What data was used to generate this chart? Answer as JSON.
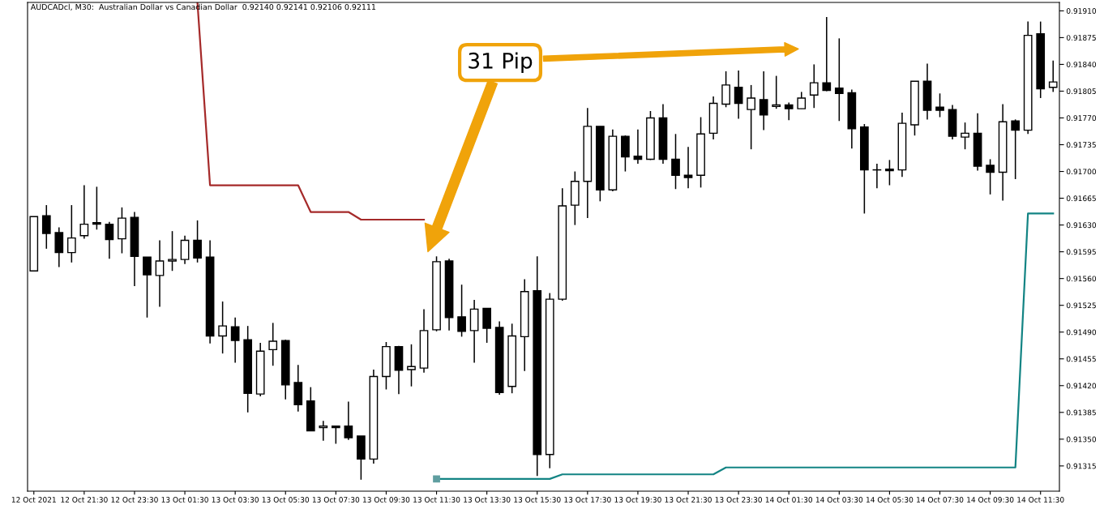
{
  "chart_data": {
    "type": "candlestick",
    "title": "AUDCADcl, M30:  Australian Dollar vs Canadian Dollar  0.92140 0.92141 0.92106 0.92111",
    "annotations": [
      "31 Pip"
    ],
    "color": "#000000",
    "categories": [
      "12 Oct 2021",
      null,
      null,
      null,
      "12 Oct 21:30",
      null,
      null,
      null,
      "12 Oct 23:30",
      null,
      null,
      null,
      "13 Oct 01:30",
      null,
      null,
      null,
      "13 Oct 03:30",
      null,
      null,
      null,
      "13 Oct 05:30",
      null,
      null,
      null,
      "13 Oct 07:30",
      null,
      null,
      null,
      "13 Oct 09:30",
      null,
      null,
      null,
      "13 Oct 11:30",
      null,
      null,
      null,
      "13 Oct 13:30",
      null,
      null,
      null,
      "13 Oct 15:30",
      null,
      null,
      null,
      "13 Oct 17:30",
      null,
      null,
      null,
      "13 Oct 19:30",
      null,
      null,
      null,
      "13 Oct 21:30",
      null,
      null,
      null,
      "13 Oct 23:30",
      null,
      null,
      null,
      "14 Oct 01:30",
      null,
      null,
      null,
      "14 Oct 03:30",
      null,
      null,
      null,
      "14 Oct 05:30",
      null,
      null,
      null,
      "14 Oct 07:30",
      null,
      null,
      null,
      "14 Oct 09:30",
      null,
      null,
      null,
      "14 Oct 11:30",
      null
    ],
    "ohlc": [
      [
        0.9157,
        0.91641,
        0.9157,
        0.91641
      ],
      [
        0.91642,
        0.91656,
        0.91599,
        0.91619
      ],
      [
        0.9162,
        0.91627,
        0.91575,
        0.91594
      ],
      [
        0.91594,
        0.91656,
        0.91581,
        0.91613
      ],
      [
        0.91616,
        0.91682,
        0.91612,
        0.91631
      ],
      [
        0.91633,
        0.9168,
        0.91624,
        0.91631
      ],
      [
        0.91631,
        0.91634,
        0.91586,
        0.91611
      ],
      [
        0.91612,
        0.91653,
        0.91593,
        0.91639
      ],
      [
        0.9164,
        0.91647,
        0.9155,
        0.91589
      ],
      [
        0.91588,
        0.91588,
        0.91509,
        0.91565
      ],
      [
        0.91564,
        0.9161,
        0.91523,
        0.91583
      ],
      [
        0.91583,
        0.91622,
        0.9157,
        0.91585
      ],
      [
        0.91585,
        0.91616,
        0.91579,
        0.9161
      ],
      [
        0.9161,
        0.91636,
        0.91581,
        0.91587
      ],
      [
        0.91588,
        0.9161,
        0.91475,
        0.91485
      ],
      [
        0.91485,
        0.9153,
        0.91462,
        0.91498
      ],
      [
        0.91497,
        0.91509,
        0.9145,
        0.91479
      ],
      [
        0.9148,
        0.91498,
        0.91385,
        0.9141
      ],
      [
        0.91409,
        0.91476,
        0.91406,
        0.91465
      ],
      [
        0.91467,
        0.91502,
        0.91446,
        0.91478
      ],
      [
        0.91479,
        0.9148,
        0.91402,
        0.91421
      ],
      [
        0.91424,
        0.91447,
        0.91386,
        0.91395
      ],
      [
        0.914,
        0.91418,
        0.91361,
        0.91361
      ],
      [
        0.91365,
        0.91374,
        0.91348,
        0.91367
      ],
      [
        0.91367,
        0.91367,
        0.91344,
        0.91365
      ],
      [
        0.91367,
        0.91399,
        0.91349,
        0.91352
      ],
      [
        0.91354,
        0.91354,
        0.91297,
        0.91324
      ],
      [
        0.91324,
        0.91441,
        0.91318,
        0.91432
      ],
      [
        0.91432,
        0.91477,
        0.91415,
        0.91471
      ],
      [
        0.91471,
        0.91472,
        0.91409,
        0.9144
      ],
      [
        0.91441,
        0.91474,
        0.91419,
        0.91445
      ],
      [
        0.91443,
        0.9152,
        0.91437,
        0.91492
      ],
      [
        0.91493,
        0.91589,
        0.91491,
        0.91582
      ],
      [
        0.91583,
        0.91586,
        0.91492,
        0.91509
      ],
      [
        0.9151,
        0.91552,
        0.91484,
        0.91491
      ],
      [
        0.91492,
        0.91532,
        0.9145,
        0.9152
      ],
      [
        0.91521,
        0.91521,
        0.91476,
        0.91495
      ],
      [
        0.91496,
        0.91504,
        0.91408,
        0.91411
      ],
      [
        0.91419,
        0.91501,
        0.9141,
        0.91485
      ],
      [
        0.91484,
        0.91559,
        0.91439,
        0.91543
      ],
      [
        0.91544,
        0.91589,
        0.91302,
        0.9133
      ],
      [
        0.9133,
        0.91541,
        0.91312,
        0.91533
      ],
      [
        0.91533,
        0.91678,
        0.91531,
        0.91655
      ],
      [
        0.91656,
        0.917,
        0.9163,
        0.91687
      ],
      [
        0.91687,
        0.91783,
        0.91639,
        0.91759
      ],
      [
        0.91759,
        0.91759,
        0.91661,
        0.91676
      ],
      [
        0.91676,
        0.91755,
        0.91674,
        0.91746
      ],
      [
        0.91746,
        0.91747,
        0.917,
        0.91719
      ],
      [
        0.9172,
        0.91755,
        0.9171,
        0.91716
      ],
      [
        0.91716,
        0.91779,
        0.91715,
        0.9177
      ],
      [
        0.9177,
        0.91788,
        0.9171,
        0.91716
      ],
      [
        0.91716,
        0.91749,
        0.91677,
        0.91695
      ],
      [
        0.91695,
        0.91732,
        0.91678,
        0.91692
      ],
      [
        0.91695,
        0.91771,
        0.91679,
        0.91749
      ],
      [
        0.9175,
        0.91798,
        0.91742,
        0.91789
      ],
      [
        0.91788,
        0.91831,
        0.91784,
        0.91813
      ],
      [
        0.9181,
        0.91832,
        0.91769,
        0.91789
      ],
      [
        0.91781,
        0.91813,
        0.91729,
        0.91796
      ],
      [
        0.91794,
        0.91831,
        0.91754,
        0.91774
      ],
      [
        0.91785,
        0.91825,
        0.91782,
        0.91787
      ],
      [
        0.91787,
        0.9179,
        0.91767,
        0.91782
      ],
      [
        0.91782,
        0.91804,
        0.91782,
        0.91796
      ],
      [
        0.918,
        0.9184,
        0.91783,
        0.91816
      ],
      [
        0.91816,
        0.91902,
        0.91805,
        0.91806
      ],
      [
        0.91809,
        0.91874,
        0.91766,
        0.91802
      ],
      [
        0.91803,
        0.91807,
        0.9173,
        0.91756
      ],
      [
        0.91758,
        0.91762,
        0.91645,
        0.91702
      ],
      [
        0.91702,
        0.9171,
        0.91678,
        0.91702
      ],
      [
        0.91703,
        0.91715,
        0.91682,
        0.91701
      ],
      [
        0.91702,
        0.91777,
        0.91693,
        0.91763
      ],
      [
        0.91761,
        0.91818,
        0.91747,
        0.91818
      ],
      [
        0.91818,
        0.91841,
        0.91768,
        0.9178
      ],
      [
        0.91784,
        0.91802,
        0.91771,
        0.9178
      ],
      [
        0.91781,
        0.91787,
        0.91742,
        0.91746
      ],
      [
        0.91745,
        0.91764,
        0.91729,
        0.9175
      ],
      [
        0.9175,
        0.91776,
        0.91701,
        0.91707
      ],
      [
        0.91708,
        0.91716,
        0.9167,
        0.91699
      ],
      [
        0.91699,
        0.91788,
        0.91662,
        0.91765
      ],
      [
        0.91766,
        0.91768,
        0.9169,
        0.91754
      ],
      [
        0.91754,
        0.91896,
        0.91749,
        0.91878
      ],
      [
        0.9188,
        0.91896,
        0.91796,
        0.91808
      ],
      [
        0.9181,
        0.91845,
        0.91804,
        0.91817
      ]
    ],
    "series": [
      {
        "type": "line",
        "color": "#a52a2a",
        "values": [
          null,
          null,
          null,
          null,
          null,
          null,
          null,
          null,
          null,
          null,
          null,
          null,
          null,
          0.91921,
          0.91682,
          0.91682,
          0.91682,
          0.91682,
          0.91682,
          0.91682,
          0.91682,
          0.91682,
          0.91647,
          0.91647,
          0.91647,
          0.91647,
          0.91637,
          0.91637,
          0.91637,
          0.91637,
          0.91637,
          0.91637,
          null,
          null,
          null,
          null,
          null,
          null,
          null,
          null,
          null,
          null,
          null,
          null,
          null,
          null,
          null,
          null,
          null,
          null,
          null,
          null,
          null,
          null,
          null,
          null,
          null,
          null,
          null,
          null,
          null,
          null,
          null,
          null,
          null,
          null,
          null,
          null,
          null,
          null,
          null,
          null,
          null,
          null,
          null,
          null,
          null,
          null,
          null,
          null,
          null,
          null
        ]
      },
      {
        "type": "scatter",
        "color": "#5f9ea0",
        "marker": "square",
        "x": [
          "13 Oct 11:30"
        ],
        "values": [
          0.91298
        ]
      },
      {
        "type": "line",
        "color": "#138484",
        "values": [
          null,
          null,
          null,
          null,
          null,
          null,
          null,
          null,
          null,
          null,
          null,
          null,
          null,
          null,
          null,
          null,
          null,
          null,
          null,
          null,
          null,
          null,
          null,
          null,
          null,
          null,
          null,
          null,
          null,
          null,
          null,
          null,
          0.91298,
          0.91298,
          0.91298,
          0.91298,
          0.91298,
          0.91298,
          0.91298,
          0.91298,
          0.91298,
          0.91298,
          0.91304,
          0.91304,
          0.91304,
          0.91304,
          0.91304,
          0.91304,
          0.91304,
          0.91304,
          0.91304,
          0.91304,
          0.91304,
          0.91304,
          0.91304,
          0.91313,
          0.91313,
          0.91313,
          0.91313,
          0.91313,
          0.91313,
          0.91313,
          0.91313,
          0.91313,
          0.91313,
          0.91313,
          0.91313,
          0.91313,
          0.91313,
          0.91313,
          0.91313,
          0.91313,
          0.91313,
          0.91313,
          0.91313,
          0.91313,
          0.91313,
          0.91313,
          0.91313,
          0.91645,
          0.91645,
          0.91645
        ]
      }
    ],
    "ylim": [
      0.91282,
      0.91921
    ],
    "yticks": [
      {
        "value": 0.9191,
        "label": "0.91910"
      },
      {
        "value": 0.91875,
        "label": "0.91875"
      },
      {
        "value": 0.9184,
        "label": "0.91840"
      },
      {
        "value": 0.91805,
        "label": "0.91805"
      },
      {
        "value": 0.9177,
        "label": "0.91770"
      },
      {
        "value": 0.91735,
        "label": "0.91735"
      },
      {
        "value": 0.917,
        "label": "0.91700"
      },
      {
        "value": 0.91665,
        "label": "0.91665"
      },
      {
        "value": 0.9163,
        "label": "0.91630"
      },
      {
        "value": 0.91595,
        "label": "0.91595"
      },
      {
        "value": 0.9156,
        "label": "0.91560"
      },
      {
        "value": 0.91525,
        "label": "0.91525"
      },
      {
        "value": 0.9149,
        "label": "0.91490"
      },
      {
        "value": 0.91455,
        "label": "0.91455"
      },
      {
        "value": 0.9142,
        "label": "0.91420"
      },
      {
        "value": 0.91385,
        "label": "0.91385"
      },
      {
        "value": 0.9135,
        "label": "0.91350"
      },
      {
        "value": 0.91315,
        "label": "0.91315"
      }
    ],
    "grid": false,
    "legend": false
  }
}
